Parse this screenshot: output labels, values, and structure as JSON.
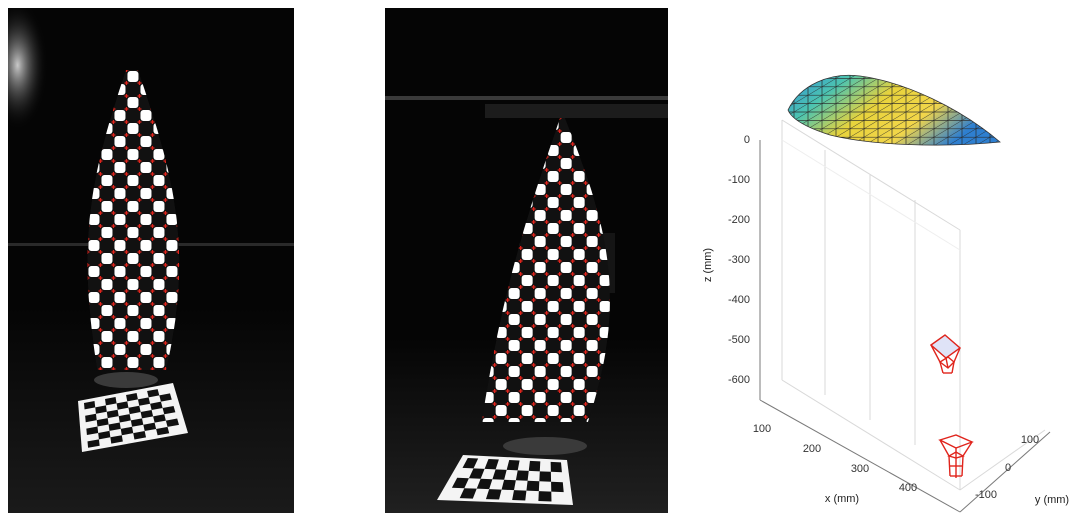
{
  "colors": {
    "background": "#ffffff",
    "photo_background": "#050505",
    "checker_dark": "#111111",
    "checker_light": "#ffffff",
    "corner_marker": "#e0241c",
    "camera_wireframe": "#e0241c",
    "surface_low": "#f0d84a",
    "surface_high": "#2e8bd8"
  },
  "icons": {
    "left_photo": "checkerboard-kite-photo",
    "middle_photo": "checkerboard-kite-photo",
    "plot": "3d-surface-plot"
  },
  "plot3d": {
    "zlabel": "z (mm)",
    "xlabel": "x (mm)",
    "ylabel": "y (mm)",
    "z_ticks": [
      "0",
      "-100",
      "-200",
      "-300",
      "-400",
      "-500",
      "-600"
    ],
    "x_ticks": [
      "100",
      "200",
      "300",
      "400"
    ],
    "y_ticks": [
      "100",
      "0",
      "-100"
    ]
  }
}
